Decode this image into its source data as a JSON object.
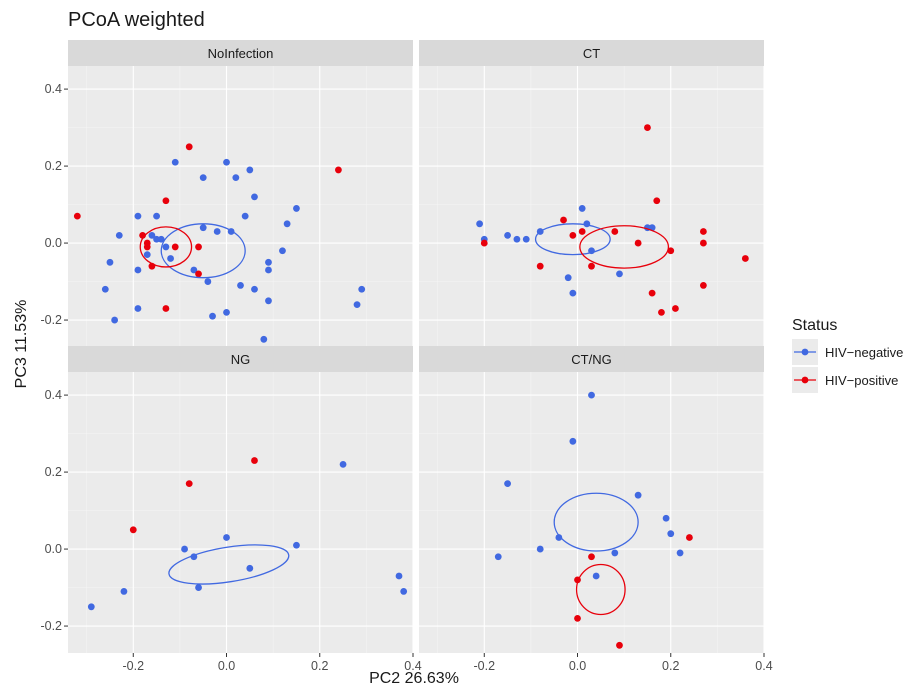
{
  "chart_data": {
    "type": "scatter",
    "title": "PCoA weighted",
    "xlabel": "PC2 26.63%",
    "ylabel": "PC3 11.53%",
    "xlim": [
      -0.34,
      0.4
    ],
    "ylim": [
      -0.27,
      0.46
    ],
    "x_ticks": [
      -0.2,
      0.0,
      0.2,
      0.4
    ],
    "x_tick_labels": [
      "-0.2",
      "0.0",
      "0.2",
      "0.4"
    ],
    "y_ticks": [
      -0.2,
      0.0,
      0.2,
      0.4
    ],
    "y_tick_labels": [
      "-0.2",
      "0.0",
      "0.2",
      "0.4"
    ],
    "grid": true,
    "legend": {
      "title": "Status",
      "placement": "right",
      "entries": [
        {
          "name": "HIV-negative",
          "label": "HIV−negative",
          "color": "#4169E1"
        },
        {
          "name": "HIV-positive",
          "label": "HIV−positive",
          "color": "#E8000B"
        }
      ]
    },
    "panels": [
      {
        "name": "NoInfection",
        "series": [
          {
            "name": "HIV-negative",
            "points": [
              [
                -0.25,
                -0.05
              ],
              [
                -0.26,
                -0.12
              ],
              [
                -0.24,
                -0.2
              ],
              [
                -0.23,
                0.02
              ],
              [
                -0.19,
                0.07
              ],
              [
                -0.19,
                -0.07
              ],
              [
                -0.19,
                -0.17
              ],
              [
                -0.17,
                -0.03
              ],
              [
                -0.16,
                0.02
              ],
              [
                -0.15,
                0.07
              ],
              [
                -0.15,
                0.01
              ],
              [
                -0.14,
                0.01
              ],
              [
                -0.13,
                -0.01
              ],
              [
                -0.12,
                -0.04
              ],
              [
                -0.11,
                0.21
              ],
              [
                -0.07,
                -0.07
              ],
              [
                -0.05,
                0.17
              ],
              [
                -0.05,
                0.04
              ],
              [
                -0.04,
                -0.1
              ],
              [
                -0.03,
                -0.19
              ],
              [
                -0.02,
                0.03
              ],
              [
                0.0,
                0.21
              ],
              [
                0.0,
                -0.18
              ],
              [
                0.01,
                0.03
              ],
              [
                0.02,
                0.17
              ],
              [
                0.03,
                -0.11
              ],
              [
                0.04,
                0.07
              ],
              [
                0.05,
                0.19
              ],
              [
                0.06,
                0.12
              ],
              [
                0.06,
                -0.12
              ],
              [
                0.08,
                -0.25
              ],
              [
                0.09,
                -0.05
              ],
              [
                0.09,
                -0.07
              ],
              [
                0.09,
                -0.15
              ],
              [
                0.12,
                -0.02
              ],
              [
                0.13,
                0.05
              ],
              [
                0.15,
                0.09
              ],
              [
                0.28,
                -0.16
              ],
              [
                0.29,
                -0.12
              ]
            ]
          },
          {
            "name": "HIV-positive",
            "points": [
              [
                -0.32,
                0.07
              ],
              [
                -0.18,
                0.02
              ],
              [
                -0.17,
                0.0
              ],
              [
                -0.17,
                -0.01
              ],
              [
                -0.16,
                -0.06
              ],
              [
                -0.13,
                0.11
              ],
              [
                -0.13,
                -0.17
              ],
              [
                -0.11,
                -0.01
              ],
              [
                -0.08,
                0.25
              ],
              [
                -0.06,
                -0.01
              ],
              [
                -0.06,
                -0.08
              ],
              [
                0.24,
                0.19
              ]
            ]
          }
        ],
        "ellipses": [
          {
            "series": "HIV-negative",
            "cx": -0.05,
            "cy": -0.02,
            "rx": 0.09,
            "ry": 0.07,
            "angle": 0
          },
          {
            "series": "HIV-positive",
            "cx": -0.13,
            "cy": -0.01,
            "rx": 0.055,
            "ry": 0.052,
            "angle": 0
          }
        ]
      },
      {
        "name": "CT",
        "series": [
          {
            "name": "HIV-negative",
            "points": [
              [
                -0.21,
                0.05
              ],
              [
                -0.2,
                0.01
              ],
              [
                -0.15,
                0.02
              ],
              [
                -0.13,
                0.01
              ],
              [
                -0.11,
                0.01
              ],
              [
                -0.08,
                0.03
              ],
              [
                -0.02,
                -0.09
              ],
              [
                -0.01,
                -0.13
              ],
              [
                0.01,
                0.09
              ],
              [
                0.02,
                0.05
              ],
              [
                0.03,
                -0.02
              ],
              [
                0.09,
                -0.08
              ],
              [
                0.15,
                0.04
              ],
              [
                0.16,
                0.04
              ]
            ]
          },
          {
            "name": "HIV-positive",
            "points": [
              [
                -0.2,
                0.0
              ],
              [
                -0.08,
                -0.06
              ],
              [
                -0.03,
                0.06
              ],
              [
                -0.01,
                0.02
              ],
              [
                0.01,
                0.03
              ],
              [
                0.03,
                -0.06
              ],
              [
                0.08,
                0.03
              ],
              [
                0.13,
                0.0
              ],
              [
                0.15,
                0.3
              ],
              [
                0.16,
                -0.13
              ],
              [
                0.17,
                0.11
              ],
              [
                0.18,
                -0.18
              ],
              [
                0.2,
                -0.02
              ],
              [
                0.21,
                -0.17
              ],
              [
                0.27,
                0.03
              ],
              [
                0.27,
                0.0
              ],
              [
                0.27,
                -0.11
              ],
              [
                0.36,
                -0.04
              ]
            ]
          }
        ],
        "ellipses": [
          {
            "series": "HIV-negative",
            "cx": -0.01,
            "cy": 0.01,
            "rx": 0.08,
            "ry": 0.04,
            "angle": 0
          },
          {
            "series": "HIV-positive",
            "cx": 0.1,
            "cy": -0.01,
            "rx": 0.095,
            "ry": 0.055,
            "angle": 0
          }
        ]
      },
      {
        "name": "NG",
        "series": [
          {
            "name": "HIV-negative",
            "points": [
              [
                -0.29,
                -0.15
              ],
              [
                -0.22,
                -0.11
              ],
              [
                -0.09,
                0.0
              ],
              [
                -0.07,
                -0.02
              ],
              [
                -0.06,
                -0.1
              ],
              [
                0.0,
                0.03
              ],
              [
                0.05,
                -0.05
              ],
              [
                0.15,
                0.01
              ],
              [
                0.25,
                0.22
              ],
              [
                0.37,
                -0.07
              ],
              [
                0.38,
                -0.11
              ]
            ]
          },
          {
            "name": "HIV-positive",
            "points": [
              [
                -0.2,
                0.05
              ],
              [
                -0.08,
                0.17
              ],
              [
                0.06,
                0.23
              ]
            ]
          }
        ],
        "ellipses": [
          {
            "series": "HIV-negative",
            "cx": 0.005,
            "cy": -0.04,
            "rx": 0.13,
            "ry": 0.045,
            "angle": 9
          }
        ]
      },
      {
        "name": "CT/NG",
        "series": [
          {
            "name": "HIV-negative",
            "points": [
              [
                -0.17,
                -0.02
              ],
              [
                -0.15,
                0.17
              ],
              [
                -0.08,
                0.0
              ],
              [
                -0.04,
                0.03
              ],
              [
                -0.01,
                0.28
              ],
              [
                0.03,
                0.4
              ],
              [
                0.04,
                -0.07
              ],
              [
                0.08,
                -0.01
              ],
              [
                0.13,
                0.14
              ],
              [
                0.19,
                0.08
              ],
              [
                0.2,
                0.04
              ],
              [
                0.22,
                -0.01
              ]
            ]
          },
          {
            "name": "HIV-positive",
            "points": [
              [
                0.0,
                -0.18
              ],
              [
                0.0,
                -0.08
              ],
              [
                0.03,
                -0.02
              ],
              [
                0.09,
                -0.25
              ],
              [
                0.24,
                0.03
              ]
            ]
          }
        ],
        "ellipses": [
          {
            "series": "HIV-negative",
            "cx": 0.04,
            "cy": 0.07,
            "rx": 0.09,
            "ry": 0.075,
            "angle": 0
          },
          {
            "series": "HIV-positive",
            "cx": 0.05,
            "cy": -0.105,
            "rx": 0.052,
            "ry": 0.065,
            "angle": 0
          }
        ]
      }
    ]
  }
}
